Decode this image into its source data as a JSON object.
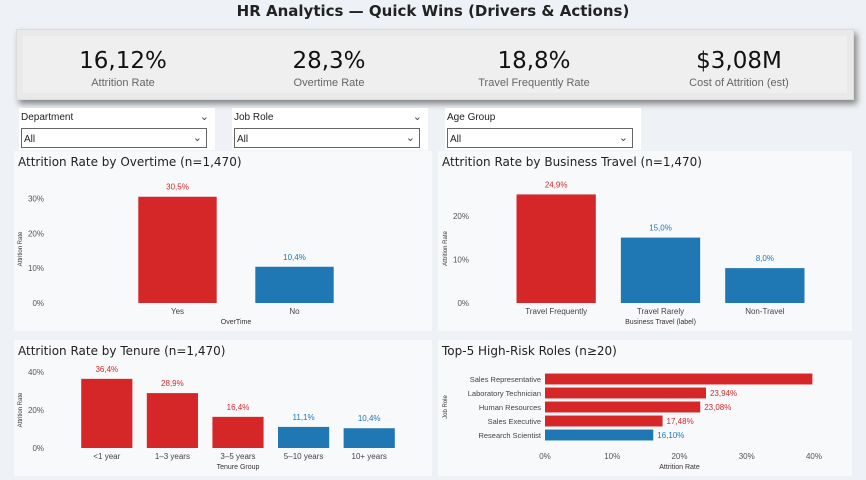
{
  "header": {
    "title": "HR Analytics — Quick Wins (Drivers & Actions)"
  },
  "kpis": [
    {
      "value": "16,12%",
      "label": "Attrition Rate"
    },
    {
      "value": "28,3%",
      "label": "Overtime Rate"
    },
    {
      "value": "18,8%",
      "label": "Travel Frequently Rate"
    },
    {
      "value": "$3,08M",
      "label": "Cost of Attrition (est)"
    }
  ],
  "slicers": [
    {
      "title": "Department",
      "value": "All"
    },
    {
      "title": "Job Role",
      "value": "All"
    },
    {
      "title": "Age Group",
      "value": "All"
    }
  ],
  "colors": {
    "red": "#d62728",
    "blue": "#1f77b4"
  },
  "chart_data": [
    {
      "type": "bar",
      "title": "Attrition Rate by Overtime (n=1,470)",
      "xlabel": "OverTime",
      "ylabel": "Attrition Rate",
      "categories": [
        "Yes",
        "No"
      ],
      "values": [
        30.5,
        10.4
      ],
      "labels": [
        "30,5%",
        "10,4%"
      ],
      "colors": [
        "red",
        "blue"
      ],
      "ylim": [
        0,
        31
      ],
      "yticks": [
        0,
        10,
        20,
        30
      ],
      "ytick_labels": [
        "0%",
        "10%",
        "20%",
        "30%"
      ]
    },
    {
      "type": "bar",
      "title": "Attrition Rate by Business Travel (n=1,470)",
      "xlabel": "Business Travel (label)",
      "ylabel": "Attrition Rate",
      "categories": [
        "Travel Frequently",
        "Travel Rarely",
        "Non-Travel"
      ],
      "values": [
        24.9,
        15.0,
        8.0
      ],
      "labels": [
        "24,9%",
        "15,0%",
        "8,0%"
      ],
      "colors": [
        "red",
        "blue",
        "blue"
      ],
      "ylim": [
        0,
        25
      ],
      "yticks": [
        0,
        10,
        20
      ],
      "ytick_labels": [
        "0%",
        "10%",
        "20%"
      ]
    },
    {
      "type": "bar",
      "title": "Attrition Rate by Tenure (n=1,470)",
      "xlabel": "Tenure Group",
      "ylabel": "Attrition Rate",
      "categories": [
        "<1 year",
        "1–3 years",
        "3–5 years",
        "5–10 years",
        "10+ years"
      ],
      "values": [
        36.4,
        28.9,
        16.4,
        11.1,
        10.4
      ],
      "labels": [
        "36,4%",
        "28,9%",
        "16,4%",
        "11,1%",
        "10,4%"
      ],
      "colors": [
        "red",
        "red",
        "red",
        "blue",
        "blue"
      ],
      "ylim": [
        0,
        40
      ],
      "yticks": [
        0,
        20,
        40
      ],
      "ytick_labels": [
        "0%",
        "20%",
        "40%"
      ]
    },
    {
      "type": "bar",
      "orientation": "horizontal",
      "title": "Top-5 High-Risk Roles (n≥20)",
      "xlabel": "Attrition Rate",
      "ylabel": "Job Role",
      "categories": [
        "Sales Representative",
        "Laboratory Technician",
        "Human Resources",
        "Sales Executive",
        "Research Scientist"
      ],
      "values": [
        39.76,
        23.94,
        23.08,
        17.48,
        16.1
      ],
      "labels": [
        "",
        "23,94%",
        "23,08%",
        "17,48%",
        "16,10%"
      ],
      "colors": [
        "red",
        "red",
        "red",
        "red",
        "blue"
      ],
      "xlim": [
        0,
        40
      ],
      "xticks": [
        0,
        10,
        20,
        30,
        40
      ],
      "xtick_labels": [
        "0%",
        "10%",
        "20%",
        "30%",
        "40%"
      ]
    }
  ]
}
